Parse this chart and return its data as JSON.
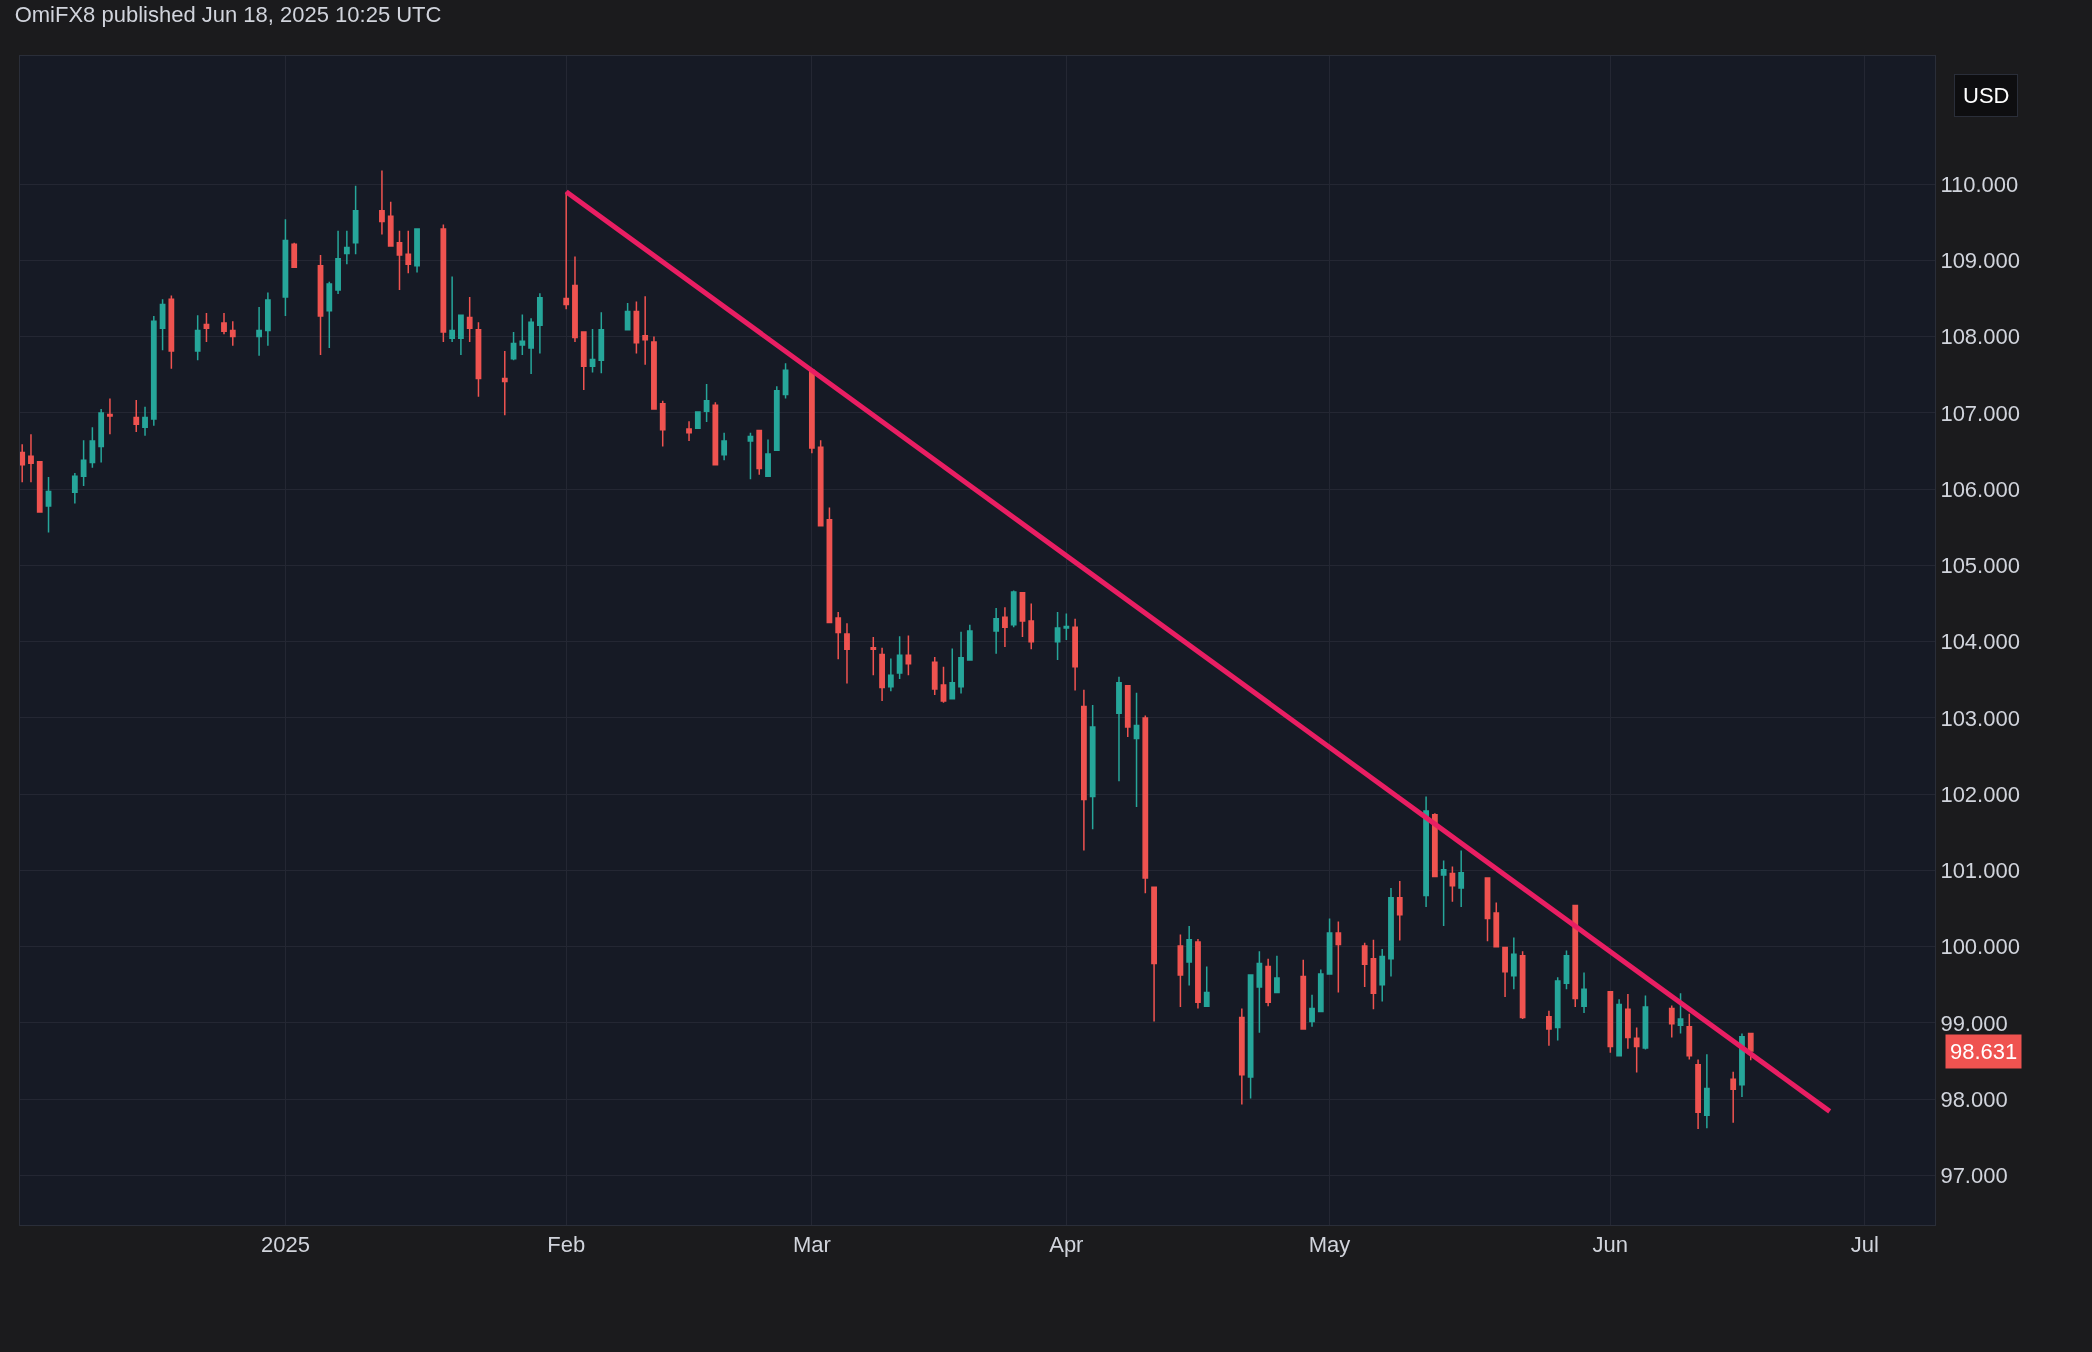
{
  "chart_data": {
    "type": "candlestick",
    "title": "OmiFX8 published Jun 18, 2025 10:25 UTC",
    "annotations": [
      "USD",
      "98.631"
    ],
    "x": [
      "2024-12-03",
      "2024-12-04",
      "2024-12-05",
      "2024-12-06",
      "2024-12-09",
      "2024-12-10",
      "2024-12-11",
      "2024-12-12",
      "2024-12-13",
      "2024-12-16",
      "2024-12-17",
      "2024-12-18",
      "2024-12-19",
      "2024-12-20",
      "2024-12-23",
      "2024-12-24",
      "2024-12-26",
      "2024-12-27",
      "2024-12-30",
      "2024-12-31",
      "2025-01-02",
      "2025-01-03",
      "2025-01-06",
      "2025-01-07",
      "2025-01-08",
      "2025-01-09",
      "2025-01-10",
      "2025-01-13",
      "2025-01-14",
      "2025-01-15",
      "2025-01-16",
      "2025-01-17",
      "2025-01-20",
      "2025-01-21",
      "2025-01-22",
      "2025-01-23",
      "2025-01-24",
      "2025-01-27",
      "2025-01-28",
      "2025-01-29",
      "2025-01-30",
      "2025-01-31",
      "2025-02-03",
      "2025-02-04",
      "2025-02-05",
      "2025-02-06",
      "2025-02-07",
      "2025-02-10",
      "2025-02-11",
      "2025-02-12",
      "2025-02-13",
      "2025-02-14",
      "2025-02-17",
      "2025-02-18",
      "2025-02-19",
      "2025-02-20",
      "2025-02-21",
      "2025-02-24",
      "2025-02-25",
      "2025-02-26",
      "2025-02-27",
      "2025-02-28",
      "2025-03-03",
      "2025-03-04",
      "2025-03-05",
      "2025-03-06",
      "2025-03-07",
      "2025-03-10",
      "2025-03-11",
      "2025-03-12",
      "2025-03-13",
      "2025-03-14",
      "2025-03-17",
      "2025-03-18",
      "2025-03-19",
      "2025-03-20",
      "2025-03-21",
      "2025-03-24",
      "2025-03-25",
      "2025-03-26",
      "2025-03-27",
      "2025-03-28",
      "2025-03-31",
      "2025-04-01",
      "2025-04-02",
      "2025-04-03",
      "2025-04-04",
      "2025-04-07",
      "2025-04-08",
      "2025-04-09",
      "2025-04-10",
      "2025-04-11",
      "2025-04-14",
      "2025-04-15",
      "2025-04-16",
      "2025-04-17",
      "2025-04-21",
      "2025-04-22",
      "2025-04-23",
      "2025-04-24",
      "2025-04-25",
      "2025-04-28",
      "2025-04-29",
      "2025-04-30",
      "2025-05-01",
      "2025-05-02",
      "2025-05-05",
      "2025-05-06",
      "2025-05-07",
      "2025-05-08",
      "2025-05-09",
      "2025-05-12",
      "2025-05-13",
      "2025-05-14",
      "2025-05-15",
      "2025-05-16",
      "2025-05-19",
      "2025-05-20",
      "2025-05-21",
      "2025-05-22",
      "2025-05-23",
      "2025-05-26",
      "2025-05-27",
      "2025-05-28",
      "2025-05-29",
      "2025-05-30",
      "2025-06-02",
      "2025-06-03",
      "2025-06-04",
      "2025-06-05",
      "2025-06-06",
      "2025-06-09",
      "2025-06-10",
      "2025-06-11",
      "2025-06-12",
      "2025-06-13",
      "2025-06-16",
      "2025-06-17",
      "2025-06-18"
    ],
    "ohlc": [
      [
        106.48,
        106.59,
        106.09,
        106.32
      ],
      [
        106.43,
        106.72,
        106.09,
        106.34
      ],
      [
        106.36,
        106.37,
        105.69,
        105.7
      ],
      [
        105.78,
        106.16,
        105.43,
        105.97
      ],
      [
        105.96,
        106.21,
        105.81,
        106.17
      ],
      [
        106.17,
        106.64,
        106.04,
        106.38
      ],
      [
        106.35,
        106.81,
        106.28,
        106.63
      ],
      [
        106.56,
        107.05,
        106.35,
        107.0
      ],
      [
        106.98,
        107.19,
        106.72,
        106.96
      ],
      [
        106.94,
        107.17,
        106.75,
        106.85
      ],
      [
        106.81,
        107.08,
        106.7,
        106.94
      ],
      [
        106.92,
        108.27,
        106.83,
        108.2
      ],
      [
        108.11,
        108.49,
        107.82,
        108.42
      ],
      [
        108.49,
        108.54,
        107.58,
        107.81
      ],
      [
        107.81,
        108.28,
        107.69,
        108.08
      ],
      [
        108.16,
        108.31,
        107.93,
        108.11
      ],
      [
        108.18,
        108.31,
        108.03,
        108.07
      ],
      [
        108.08,
        108.2,
        107.88,
        108.0
      ],
      [
        108.0,
        108.39,
        107.75,
        108.08
      ],
      [
        108.08,
        108.58,
        107.88,
        108.48
      ],
      [
        108.52,
        109.54,
        108.27,
        109.26
      ],
      [
        109.21,
        109.23,
        108.9,
        108.91
      ],
      [
        108.93,
        109.07,
        107.76,
        108.27
      ],
      [
        108.34,
        108.72,
        107.85,
        108.69
      ],
      [
        108.61,
        109.39,
        108.56,
        109.02
      ],
      [
        109.09,
        109.39,
        108.95,
        109.17
      ],
      [
        109.23,
        109.98,
        109.08,
        109.65
      ],
      [
        109.65,
        110.18,
        109.34,
        109.51
      ],
      [
        109.58,
        109.77,
        109.19,
        109.19
      ],
      [
        109.23,
        109.39,
        108.61,
        109.07
      ],
      [
        109.08,
        109.39,
        108.83,
        108.95
      ],
      [
        108.93,
        109.42,
        108.84,
        109.41
      ],
      [
        109.41,
        109.47,
        107.93,
        108.06
      ],
      [
        107.98,
        108.79,
        107.93,
        108.08
      ],
      [
        107.98,
        108.28,
        107.76,
        108.28
      ],
      [
        108.25,
        108.52,
        107.93,
        108.11
      ],
      [
        108.09,
        108.19,
        107.21,
        107.45
      ],
      [
        107.45,
        107.81,
        106.97,
        107.41
      ],
      [
        107.71,
        108.06,
        107.69,
        107.91
      ],
      [
        107.89,
        108.29,
        107.76,
        107.94
      ],
      [
        107.85,
        108.24,
        107.51,
        108.19
      ],
      [
        108.15,
        108.57,
        107.78,
        108.51
      ],
      [
        108.5,
        109.9,
        108.36,
        108.42
      ],
      [
        108.67,
        109.05,
        107.93,
        107.99
      ],
      [
        108.06,
        108.06,
        107.3,
        107.61
      ],
      [
        107.61,
        108.1,
        107.53,
        107.7
      ],
      [
        107.69,
        108.32,
        107.52,
        108.09
      ],
      [
        108.09,
        108.44,
        108.09,
        108.33
      ],
      [
        108.33,
        108.46,
        107.78,
        107.92
      ],
      [
        108.01,
        108.53,
        107.63,
        107.96
      ],
      [
        107.93,
        108.0,
        107.04,
        107.05
      ],
      [
        107.12,
        107.16,
        106.56,
        106.78
      ],
      [
        106.79,
        106.89,
        106.63,
        106.74
      ],
      [
        106.8,
        107.01,
        106.8,
        107.01
      ],
      [
        107.02,
        107.38,
        106.88,
        107.16
      ],
      [
        107.1,
        107.14,
        106.32,
        106.32
      ],
      [
        106.45,
        106.74,
        106.38,
        106.63
      ],
      [
        106.63,
        106.74,
        106.13,
        106.69
      ],
      [
        106.77,
        106.78,
        106.19,
        106.27
      ],
      [
        106.17,
        106.65,
        106.17,
        106.46
      ],
      [
        106.51,
        107.35,
        106.51,
        107.29
      ],
      [
        107.24,
        107.65,
        107.19,
        107.56
      ],
      [
        107.56,
        107.57,
        106.47,
        106.54
      ],
      [
        106.55,
        106.64,
        105.52,
        105.52
      ],
      [
        105.6,
        105.76,
        104.25,
        104.25
      ],
      [
        104.31,
        104.39,
        103.77,
        104.12
      ],
      [
        104.1,
        104.24,
        103.45,
        103.9
      ],
      [
        103.92,
        104.06,
        103.56,
        103.9
      ],
      [
        103.83,
        103.92,
        103.22,
        103.4
      ],
      [
        103.41,
        103.78,
        103.35,
        103.56
      ],
      [
        103.59,
        104.07,
        103.51,
        103.82
      ],
      [
        103.82,
        104.08,
        103.56,
        103.71
      ],
      [
        103.73,
        103.8,
        103.3,
        103.38
      ],
      [
        103.43,
        103.67,
        103.2,
        103.22
      ],
      [
        103.25,
        103.91,
        103.25,
        103.46
      ],
      [
        103.41,
        104.13,
        103.32,
        103.79
      ],
      [
        103.76,
        104.22,
        103.76,
        104.14
      ],
      [
        104.14,
        104.44,
        103.84,
        104.3
      ],
      [
        104.32,
        104.45,
        103.93,
        104.19
      ],
      [
        104.22,
        104.67,
        104.19,
        104.65
      ],
      [
        104.64,
        104.65,
        104.06,
        104.27
      ],
      [
        104.27,
        104.5,
        103.9,
        104.0
      ],
      [
        104.0,
        104.39,
        103.76,
        104.18
      ],
      [
        104.18,
        104.37,
        104.02,
        104.2
      ],
      [
        104.19,
        104.3,
        103.36,
        103.67
      ],
      [
        103.15,
        103.37,
        101.26,
        101.93
      ],
      [
        101.97,
        103.17,
        101.54,
        102.88
      ],
      [
        103.06,
        103.54,
        102.17,
        103.46
      ],
      [
        103.42,
        103.43,
        102.75,
        102.88
      ],
      [
        102.73,
        103.33,
        101.83,
        102.9
      ],
      [
        103.0,
        103.03,
        100.7,
        100.9
      ],
      [
        100.78,
        100.78,
        99.02,
        99.78
      ],
      [
        100.01,
        100.16,
        99.21,
        99.63
      ],
      [
        99.8,
        100.27,
        99.49,
        100.09
      ],
      [
        100.06,
        100.1,
        99.19,
        99.27
      ],
      [
        99.22,
        99.74,
        99.22,
        99.4
      ],
      [
        99.07,
        99.19,
        97.93,
        98.32
      ],
      [
        98.29,
        99.63,
        98.01,
        99.63
      ],
      [
        99.47,
        99.94,
        98.87,
        99.78
      ],
      [
        99.74,
        99.84,
        99.22,
        99.27
      ],
      [
        99.4,
        99.88,
        99.4,
        99.59
      ],
      [
        99.61,
        99.83,
        98.91,
        98.92
      ],
      [
        99.02,
        99.37,
        98.95,
        99.19
      ],
      [
        99.15,
        99.7,
        99.15,
        99.64
      ],
      [
        99.64,
        100.37,
        99.64,
        100.18
      ],
      [
        100.18,
        100.33,
        99.4,
        100.03
      ],
      [
        100.01,
        100.05,
        99.47,
        99.77
      ],
      [
        99.84,
        100.09,
        99.18,
        99.39
      ],
      [
        99.5,
        99.97,
        99.28,
        99.87
      ],
      [
        99.84,
        100.77,
        99.61,
        100.64
      ],
      [
        100.64,
        100.86,
        100.08,
        100.42
      ],
      [
        100.67,
        101.97,
        100.52,
        101.78
      ],
      [
        101.73,
        101.75,
        100.92,
        100.92
      ],
      [
        100.94,
        101.13,
        100.27,
        101.01
      ],
      [
        100.96,
        101.05,
        100.59,
        100.8
      ],
      [
        100.77,
        101.26,
        100.52,
        100.97
      ],
      [
        100.9,
        100.9,
        100.07,
        100.37
      ],
      [
        100.44,
        100.58,
        100.0,
        100.0
      ],
      [
        99.99,
        99.99,
        99.34,
        99.67
      ],
      [
        99.62,
        100.12,
        99.44,
        99.9
      ],
      [
        99.88,
        99.94,
        99.05,
        99.07
      ],
      [
        99.08,
        99.16,
        98.7,
        98.92
      ],
      [
        98.94,
        99.6,
        98.77,
        99.55
      ],
      [
        99.52,
        99.95,
        99.44,
        99.88
      ],
      [
        100.54,
        100.54,
        99.21,
        99.32
      ],
      [
        99.22,
        99.66,
        99.13,
        99.44
      ],
      [
        99.41,
        99.41,
        98.61,
        98.69
      ],
      [
        98.57,
        99.31,
        98.57,
        99.24
      ],
      [
        99.18,
        99.38,
        98.66,
        98.81
      ],
      [
        98.8,
        98.94,
        98.35,
        98.69
      ],
      [
        98.67,
        99.36,
        98.65,
        99.21
      ],
      [
        99.19,
        99.23,
        98.81,
        98.99
      ],
      [
        98.97,
        99.39,
        98.86,
        99.05
      ],
      [
        98.95,
        99.12,
        98.52,
        98.57
      ],
      [
        98.45,
        98.52,
        97.61,
        97.83
      ],
      [
        97.79,
        98.59,
        97.62,
        98.14
      ],
      [
        98.26,
        98.36,
        97.69,
        98.13
      ],
      [
        98.19,
        98.86,
        98.03,
        98.82
      ],
      [
        98.86,
        98.86,
        98.51,
        98.631
      ]
    ],
    "colors": [
      "#ef5350",
      "#ef5350",
      "#ef5350",
      "#26a69a",
      "#26a69a",
      "#26a69a",
      "#26a69a",
      "#26a69a",
      "#ef5350",
      "#ef5350",
      "#26a69a",
      "#26a69a",
      "#26a69a",
      "#ef5350",
      "#26a69a",
      "#ef5350",
      "#ef5350",
      "#ef5350",
      "#26a69a",
      "#26a69a",
      "#26a69a",
      "#ef5350",
      "#ef5350",
      "#26a69a",
      "#26a69a",
      "#26a69a",
      "#26a69a",
      "#ef5350",
      "#ef5350",
      "#ef5350",
      "#ef5350",
      "#26a69a",
      "#ef5350",
      "#26a69a",
      "#26a69a",
      "#ef5350",
      "#ef5350",
      "#ef5350",
      "#26a69a",
      "#26a69a",
      "#26a69a",
      "#26a69a",
      "#ef5350",
      "#ef5350",
      "#ef5350",
      "#26a69a",
      "#26a69a",
      "#26a69a",
      "#ef5350",
      "#ef5350",
      "#ef5350",
      "#ef5350",
      "#ef5350",
      "#26a69a",
      "#26a69a",
      "#ef5350",
      "#26a69a",
      "#26a69a",
      "#ef5350",
      "#26a69a",
      "#26a69a",
      "#26a69a",
      "#ef5350",
      "#ef5350",
      "#ef5350",
      "#ef5350",
      "#ef5350",
      "#ef5350",
      "#ef5350",
      "#26a69a",
      "#26a69a",
      "#ef5350",
      "#ef5350",
      "#ef5350",
      "#26a69a",
      "#26a69a",
      "#26a69a",
      "#26a69a",
      "#ef5350",
      "#26a69a",
      "#ef5350",
      "#ef5350",
      "#26a69a",
      "#26a69a",
      "#ef5350",
      "#ef5350",
      "#26a69a",
      "#26a69a",
      "#ef5350",
      "#26a69a",
      "#ef5350",
      "#ef5350",
      "#ef5350",
      "#26a69a",
      "#ef5350",
      "#26a69a",
      "#ef5350",
      "#26a69a",
      "#26a69a",
      "#ef5350",
      "#26a69a",
      "#ef5350",
      "#26a69a",
      "#26a69a",
      "#26a69a",
      "#ef5350",
      "#ef5350",
      "#ef5350",
      "#26a69a",
      "#26a69a",
      "#ef5350",
      "#26a69a",
      "#ef5350",
      "#26a69a",
      "#ef5350",
      "#26a69a",
      "#ef5350",
      "#ef5350",
      "#ef5350",
      "#26a69a",
      "#ef5350",
      "#ef5350",
      "#26a69a",
      "#26a69a",
      "#ef5350",
      "#26a69a",
      "#ef5350",
      "#26a69a",
      "#ef5350",
      "#ef5350",
      "#26a69a",
      "#ef5350",
      "#26a69a",
      "#ef5350",
      "#ef5350",
      "#26a69a",
      "#ef5350",
      "#26a69a",
      "#ef5350"
    ],
    "series": [
      {
        "type": "line",
        "x": [
          "2025-02-03",
          "2025-06-27"
        ],
        "values": [
          109.9,
          97.84
        ],
        "color": "#e91e63"
      }
    ],
    "xlim": [
      "2024-12-02T18:00",
      "2025-07-09"
    ],
    "xticks": [
      {
        "value": "2025-01-02",
        "label": "2025"
      },
      {
        "value": "2025-02-03",
        "label": "Feb"
      },
      {
        "value": "2025-03-03",
        "label": "Mar"
      },
      {
        "value": "2025-04-01",
        "label": "Apr"
      },
      {
        "value": "2025-05-01",
        "label": "May"
      },
      {
        "value": "2025-06-02",
        "label": "Jun"
      },
      {
        "value": "2025-07-01",
        "label": "Jul"
      }
    ],
    "ylim": [
      96.35,
      111.68
    ],
    "yticks": [
      {
        "value": 97,
        "label": "97.000"
      },
      {
        "value": 98,
        "label": "98.000"
      },
      {
        "value": 99,
        "label": "99.000"
      },
      {
        "value": 100,
        "label": "100.000"
      },
      {
        "value": 101,
        "label": "101.000"
      },
      {
        "value": 102,
        "label": "102.000"
      },
      {
        "value": 103,
        "label": "103.000"
      },
      {
        "value": 104,
        "label": "104.000"
      },
      {
        "value": 105,
        "label": "105.000"
      },
      {
        "value": 106,
        "label": "106.000"
      },
      {
        "value": 107,
        "label": "107.000"
      },
      {
        "value": 108,
        "label": "108.000"
      },
      {
        "value": 109,
        "label": "109.000"
      },
      {
        "value": 110,
        "label": "110.000"
      }
    ],
    "grid": true
  }
}
